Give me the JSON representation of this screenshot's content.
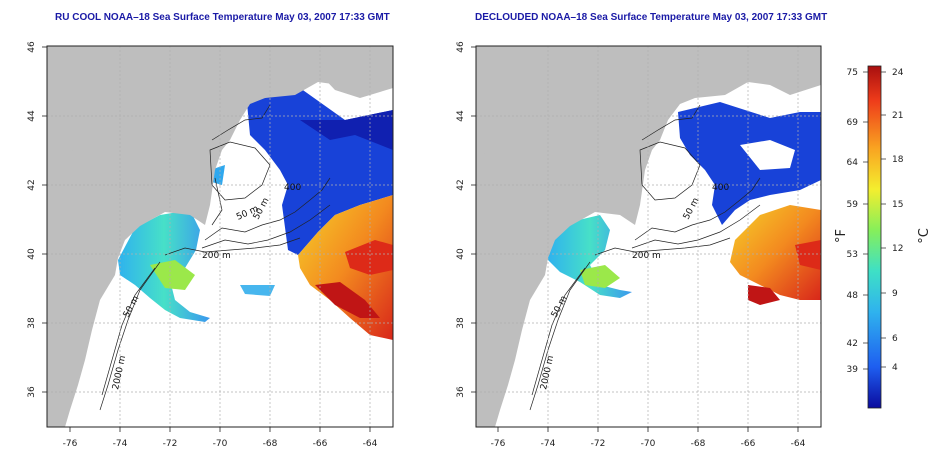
{
  "titles": {
    "left": "RU COOL NOAA–18 Sea Surface Temperature May 03, 2007 17:33 GMT",
    "right": "DECLOUDED NOAA–18 Sea Surface Temperature May 03, 2007 17:33 GMT"
  },
  "maps": {
    "x_ticks": [
      "-76",
      "-74",
      "-72",
      "-70",
      "-68",
      "-66",
      "-64"
    ],
    "y_ticks": [
      "46",
      "44",
      "42",
      "40",
      "38",
      "36"
    ],
    "lon_range": [
      -77,
      -63
    ],
    "lat_range": [
      35,
      46
    ],
    "isobath_labels": {
      "left": [
        "50 m",
        "400",
        "50 m",
        "200 m",
        "50 m",
        "2000 m"
      ],
      "right": [
        "400",
        "50 m",
        "200 m",
        "50 m",
        "2000 m"
      ]
    }
  },
  "colorbar": {
    "fahrenheit_ticks": [
      "75",
      "69",
      "64",
      "59",
      "53",
      "48",
      "42",
      "39"
    ],
    "celsius_ticks": [
      "24",
      "21",
      "18",
      "15",
      "12",
      "9",
      "6",
      "4"
    ],
    "fahrenheit_label": "°F",
    "celsius_label": "°C",
    "colors": [
      "#0b0b9e",
      "#1e5ef0",
      "#2fb2ee",
      "#3ee0c6",
      "#86ef5a",
      "#f4ee2e",
      "#f9a321",
      "#ee3b1a",
      "#a80f0f"
    ]
  }
}
